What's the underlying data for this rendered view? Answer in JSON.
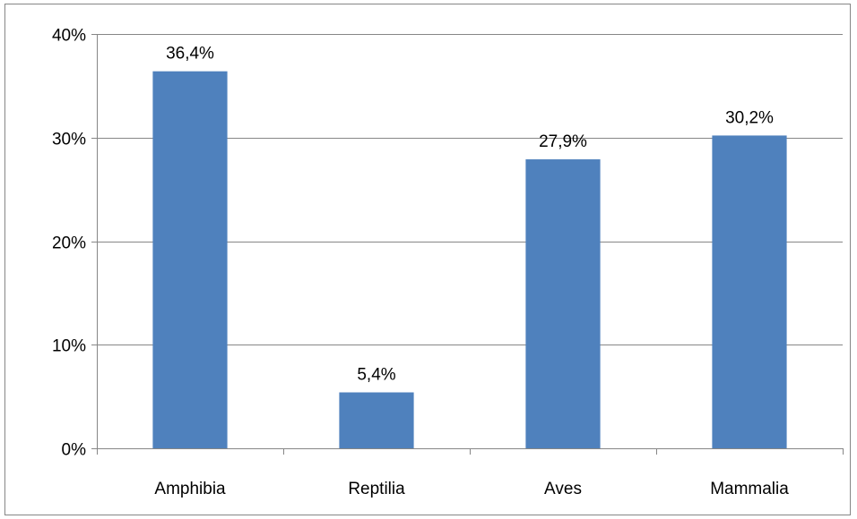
{
  "chart_data": {
    "type": "bar",
    "categories": [
      "Amphibia",
      "Reptilia",
      "Aves",
      "Mammalia"
    ],
    "values": [
      36.4,
      5.4,
      27.9,
      30.2
    ],
    "data_labels": [
      "36,4%",
      "5,4%",
      "27,9%",
      "30,2%"
    ],
    "ylim": [
      0,
      40
    ],
    "yticks": [
      0,
      10,
      20,
      30,
      40
    ],
    "ytick_labels": [
      "0%",
      "10%",
      "20%",
      "30%",
      "40%"
    ],
    "grid": true,
    "legend": "none",
    "colors": {
      "bar": "#4f81bd",
      "gridline": "#868686",
      "axis": "#868686",
      "text": "#000000"
    }
  }
}
